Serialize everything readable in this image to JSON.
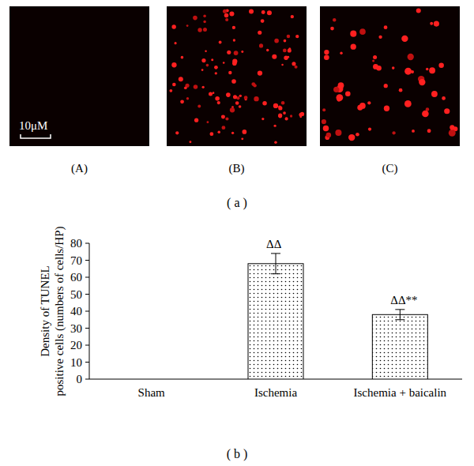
{
  "panels": {
    "labels": [
      "(A)",
      "(B)",
      "(C)"
    ],
    "scale_bar": "10μM"
  },
  "figure_labels": [
    "( a )",
    "( b )"
  ],
  "chart_data": {
    "type": "bar",
    "y_label": "Density of TUNEL positive cells (numbers of cells/HP)",
    "categories": [
      "Sham",
      "Ischemia",
      "Ischemia + baicalin"
    ],
    "values": [
      0,
      68,
      38
    ],
    "errors": [
      0,
      6,
      3
    ],
    "color": "#000000",
    "ylim": [
      0,
      80
    ],
    "yticks": [
      0,
      10,
      20,
      30,
      40,
      50,
      60,
      70,
      80
    ],
    "grid": false,
    "annotations": [
      {
        "x": "Ischemia",
        "text": "ΔΔ"
      },
      {
        "x": "Ischemia + baicalin",
        "text": "ΔΔ**"
      }
    ]
  }
}
